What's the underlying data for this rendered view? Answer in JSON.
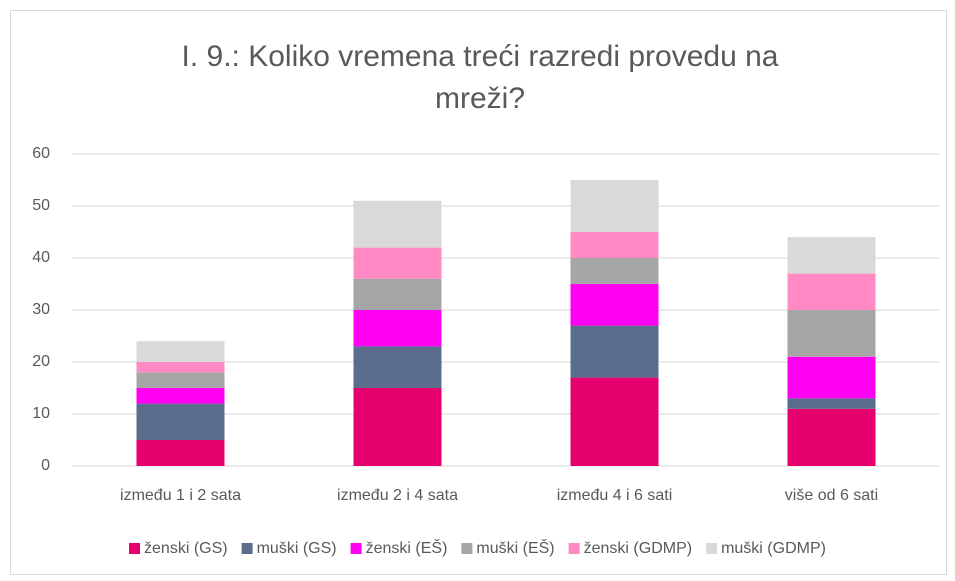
{
  "chart_data": {
    "type": "stacked_bar",
    "title": "I. 9.: Koliko vremena treći razredi provedu na mreži?",
    "categories": [
      "između 1 i 2 sata",
      "između 2 i 4 sata",
      "između 4 i 6 sati",
      "više od 6 sati"
    ],
    "series": [
      {
        "name": "ženski (GS)",
        "color": "#e5006d",
        "values": [
          5,
          15,
          17,
          11
        ]
      },
      {
        "name": "muški (GS)",
        "color": "#5a6d8c",
        "values": [
          7,
          8,
          10,
          2
        ]
      },
      {
        "name": "ženski (EŠ)",
        "color": "#ff00f2",
        "values": [
          3,
          7,
          8,
          8
        ]
      },
      {
        "name": "muški (EŠ)",
        "color": "#a6a6a6",
        "values": [
          3,
          6,
          5,
          9
        ]
      },
      {
        "name": "ženski (GDMP)",
        "color": "#ff89c3",
        "values": [
          2,
          6,
          5,
          7
        ]
      },
      {
        "name": "muški (GDMP)",
        "color": "#d9d9d9",
        "values": [
          4,
          9,
          10,
          7
        ]
      }
    ],
    "ylim": [
      0,
      60
    ],
    "yticks": [
      0,
      10,
      20,
      30,
      40,
      50,
      60
    ],
    "grid": true,
    "legend": "bottom"
  }
}
